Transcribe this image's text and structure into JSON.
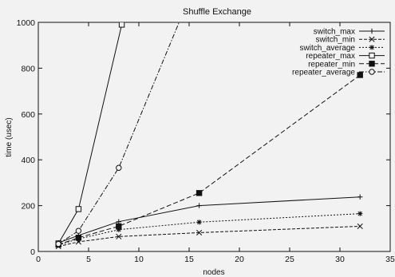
{
  "chart_data": {
    "type": "line",
    "title": "Shuffle Exchange",
    "xlabel": "nodes",
    "ylabel": "time (usec)",
    "xlim": [
      0,
      35
    ],
    "ylim": [
      0,
      1000
    ],
    "xticks": [
      0,
      5,
      10,
      15,
      20,
      25,
      30,
      35
    ],
    "yticks": [
      0,
      200,
      400,
      600,
      800,
      1000
    ],
    "grid": false,
    "legend_position": "top-right",
    "series": [
      {
        "name": "switch_max",
        "marker": "plus",
        "dash": "solid",
        "x": [
          2,
          4,
          8,
          16,
          32
        ],
        "y": [
          38,
          70,
          130,
          200,
          238
        ]
      },
      {
        "name": "switch_min",
        "marker": "cross",
        "dash": "dash",
        "x": [
          2,
          4,
          8,
          16,
          32
        ],
        "y": [
          22,
          42,
          65,
          82,
          110
        ]
      },
      {
        "name": "switch_average",
        "marker": "star",
        "dash": "dot",
        "x": [
          2,
          4,
          8,
          16,
          32
        ],
        "y": [
          28,
          55,
          95,
          128,
          165
        ]
      },
      {
        "name": "repeater_max",
        "marker": "square-open",
        "dash": "solid",
        "x": [
          2,
          4,
          8.3
        ],
        "y": [
          35,
          185,
          990
        ]
      },
      {
        "name": "repeater_min",
        "marker": "square-filled",
        "dash": "dashlong",
        "x": [
          2,
          4,
          8,
          16,
          32
        ],
        "y": [
          30,
          60,
          110,
          255,
          770
        ]
      },
      {
        "name": "repeater_average",
        "marker": "circle-open",
        "dash": "dashdot",
        "x": [
          2,
          4,
          8,
          14
        ],
        "y": [
          33,
          90,
          365,
          1000
        ]
      }
    ]
  }
}
